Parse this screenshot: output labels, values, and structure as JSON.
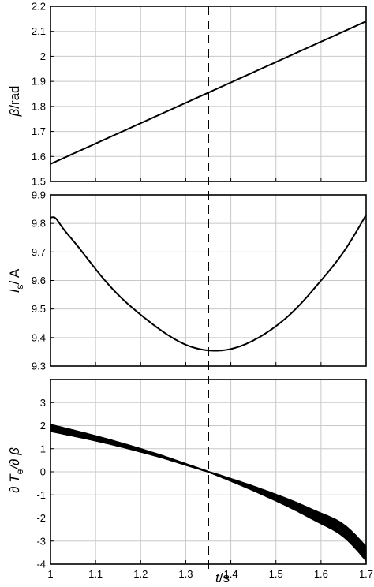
{
  "chart_data": [
    {
      "type": "line",
      "ylabel_symbol": "β",
      "ylabel_unit": "/rad",
      "ylim": [
        1.5,
        2.2
      ],
      "yticks": [
        1.5,
        1.6,
        1.7,
        1.8,
        1.9,
        2.0,
        2.1,
        2.2
      ],
      "ytick_labels": [
        "1.5",
        "1.6",
        "1.7",
        "1.8",
        "1.9",
        "2",
        "2.1",
        "2.2"
      ],
      "x": [
        1.0,
        1.7
      ],
      "series": [
        {
          "values": [
            1.57,
            2.14
          ]
        }
      ],
      "grid": true
    },
    {
      "type": "line",
      "ylabel_symbol": "I",
      "ylabel_sub": "s",
      "ylabel_unit": "/ A",
      "ylim": [
        9.3,
        9.9
      ],
      "yticks": [
        9.3,
        9.4,
        9.5,
        9.6,
        9.7,
        9.8,
        9.9
      ],
      "ytick_labels": [
        "9.3",
        "9.4",
        "9.5",
        "9.6",
        "9.7",
        "9.8",
        "9.9"
      ],
      "x": [
        1.0,
        1.01,
        1.02,
        1.05,
        1.1,
        1.15,
        1.2,
        1.25,
        1.3,
        1.35,
        1.4,
        1.45,
        1.5,
        1.55,
        1.6,
        1.65,
        1.7
      ],
      "series": [
        {
          "values": [
            9.82,
            9.82,
            9.8,
            9.74,
            9.64,
            9.55,
            9.48,
            9.42,
            9.375,
            9.355,
            9.36,
            9.39,
            9.44,
            9.51,
            9.6,
            9.7,
            9.83
          ]
        }
      ],
      "grid": true
    },
    {
      "type": "line",
      "ylabel_text": "∂ T",
      "ylabel_sub": "e",
      "ylabel_tail": "/∂ β",
      "ylim": [
        -4,
        4
      ],
      "yticks": [
        -4,
        -3,
        -2,
        -1,
        0,
        1,
        2,
        3
      ],
      "ytick_labels": [
        "-4",
        "-3",
        "-2",
        "-1",
        "0",
        "1",
        "2",
        "3"
      ],
      "x": [
        1.0,
        1.05,
        1.1,
        1.15,
        1.2,
        1.25,
        1.3,
        1.35,
        1.4,
        1.45,
        1.5,
        1.55,
        1.6,
        1.65,
        1.7
      ],
      "series": [
        {
          "values": [
            1.9,
            1.68,
            1.45,
            1.2,
            0.93,
            0.64,
            0.32,
            0.0,
            -0.35,
            -0.72,
            -1.12,
            -1.55,
            -2.02,
            -2.55,
            -3.55
          ]
        }
      ],
      "band": {
        "start": 0.15,
        "end": 0.3
      },
      "grid": true
    }
  ],
  "xaxis": {
    "xlim": [
      1.0,
      1.7
    ],
    "xticks": [
      1.0,
      1.1,
      1.2,
      1.3,
      1.4,
      1.5,
      1.6,
      1.7
    ],
    "xtick_labels": [
      "1",
      "1.1",
      "1.2",
      "1.3",
      "1.4",
      "1.5",
      "1.6",
      "1.7"
    ],
    "xlabel_symbol": "t",
    "xlabel_unit": "/s"
  },
  "marker_x": 1.35
}
